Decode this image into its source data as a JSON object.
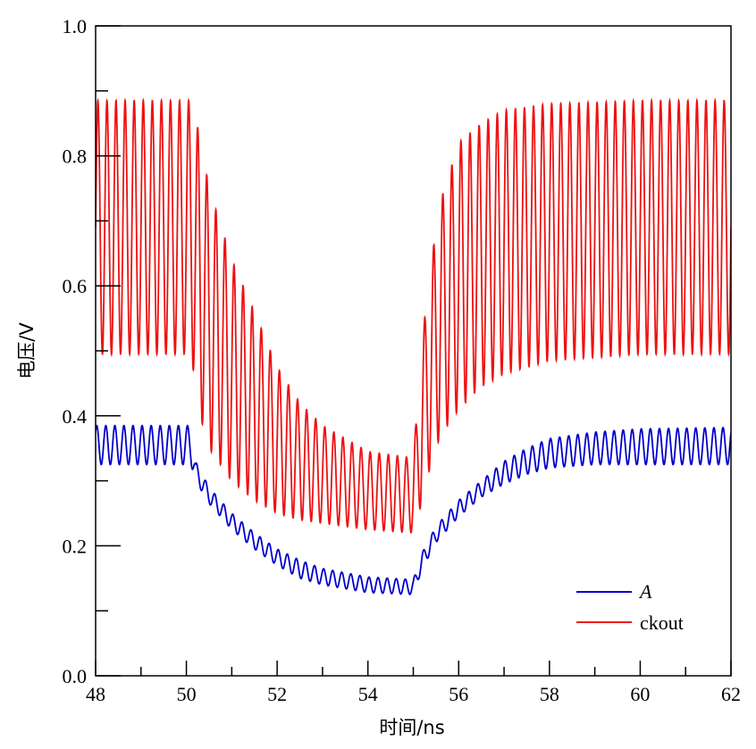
{
  "chart_data": {
    "type": "line",
    "title": "",
    "xlabel": "时间/ns",
    "ylabel": "电压/V",
    "xlim": [
      48,
      62
    ],
    "ylim": [
      0.0,
      1.0
    ],
    "x_ticks": [
      "48",
      "50",
      "52",
      "54",
      "56",
      "58",
      "60",
      "62"
    ],
    "y_ticks": [
      "0.0",
      "0.2",
      "0.4",
      "0.6",
      "0.8",
      "1.0"
    ],
    "x_minor_step": 1,
    "y_minor_step": 0.1,
    "grid": false,
    "legend_position": "bottom-right",
    "oscillation_period_ns": 0.2,
    "series": [
      {
        "name": "A",
        "name_style": "italic",
        "color": "#0000cc",
        "envelope": {
          "x": [
            48,
            50.1,
            50.2,
            50.5,
            51.0,
            51.5,
            52.0,
            52.5,
            53.0,
            54.0,
            55.0,
            55.2,
            55.5,
            56.0,
            56.5,
            57.0,
            57.5,
            58.0,
            59.0,
            60.0,
            62.0
          ],
          "upper": [
            0.385,
            0.385,
            0.33,
            0.29,
            0.25,
            0.22,
            0.195,
            0.178,
            0.165,
            0.152,
            0.148,
            0.19,
            0.23,
            0.27,
            0.3,
            0.33,
            0.35,
            0.365,
            0.375,
            0.38,
            0.382
          ],
          "lower": [
            0.325,
            0.325,
            0.3,
            0.265,
            0.225,
            0.195,
            0.17,
            0.15,
            0.14,
            0.128,
            0.125,
            0.165,
            0.205,
            0.245,
            0.275,
            0.295,
            0.31,
            0.32,
            0.325,
            0.325,
            0.325
          ]
        }
      },
      {
        "name": "ckout",
        "color": "#ee1111",
        "envelope": {
          "x": [
            48,
            50.1,
            50.3,
            50.5,
            51.0,
            51.5,
            52.0,
            52.5,
            53.0,
            54.0,
            55.0,
            55.2,
            55.4,
            55.6,
            56.0,
            56.5,
            57.0,
            58.0,
            59.0,
            60.0,
            62.0
          ],
          "upper": [
            0.885,
            0.885,
            0.83,
            0.75,
            0.64,
            0.56,
            0.475,
            0.42,
            0.385,
            0.345,
            0.335,
            0.52,
            0.64,
            0.73,
            0.82,
            0.85,
            0.87,
            0.88,
            0.882,
            0.885,
            0.885
          ],
          "lower": [
            0.495,
            0.495,
            0.4,
            0.35,
            0.3,
            0.27,
            0.25,
            0.24,
            0.235,
            0.225,
            0.22,
            0.27,
            0.33,
            0.37,
            0.41,
            0.445,
            0.465,
            0.485,
            0.49,
            0.495,
            0.495
          ]
        }
      }
    ]
  }
}
